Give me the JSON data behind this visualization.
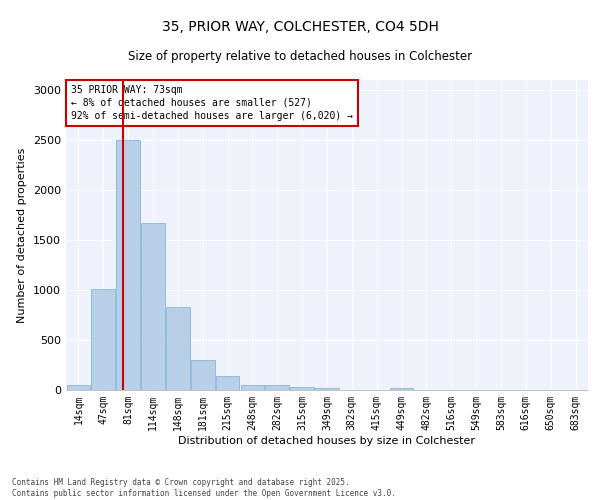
{
  "title": "35, PRIOR WAY, COLCHESTER, CO4 5DH",
  "subtitle": "Size of property relative to detached houses in Colchester",
  "xlabel": "Distribution of detached houses by size in Colchester",
  "ylabel": "Number of detached properties",
  "categories": [
    "14sqm",
    "47sqm",
    "81sqm",
    "114sqm",
    "148sqm",
    "181sqm",
    "215sqm",
    "248sqm",
    "282sqm",
    "315sqm",
    "349sqm",
    "382sqm",
    "415sqm",
    "449sqm",
    "482sqm",
    "516sqm",
    "549sqm",
    "583sqm",
    "616sqm",
    "650sqm",
    "683sqm"
  ],
  "bar_heights": [
    55,
    1010,
    2500,
    1670,
    830,
    300,
    145,
    52,
    52,
    30,
    20,
    0,
    0,
    20,
    0,
    0,
    0,
    0,
    0,
    0,
    0
  ],
  "bar_color": "#b8cfe8",
  "bar_edge_color": "#7aafd4",
  "bar_width": 0.95,
  "property_line_color": "#cc0000",
  "annotation_text": "35 PRIOR WAY: 73sqm\n← 8% of detached houses are smaller (527)\n92% of semi-detached houses are larger (6,020) →",
  "annotation_box_color": "#cc0000",
  "ylim": [
    0,
    3100
  ],
  "yticks": [
    0,
    500,
    1000,
    1500,
    2000,
    2500,
    3000
  ],
  "background_color": "#eef2fa",
  "footer_line1": "Contains HM Land Registry data © Crown copyright and database right 2025.",
  "footer_line2": "Contains public sector information licensed under the Open Government Licence v3.0."
}
